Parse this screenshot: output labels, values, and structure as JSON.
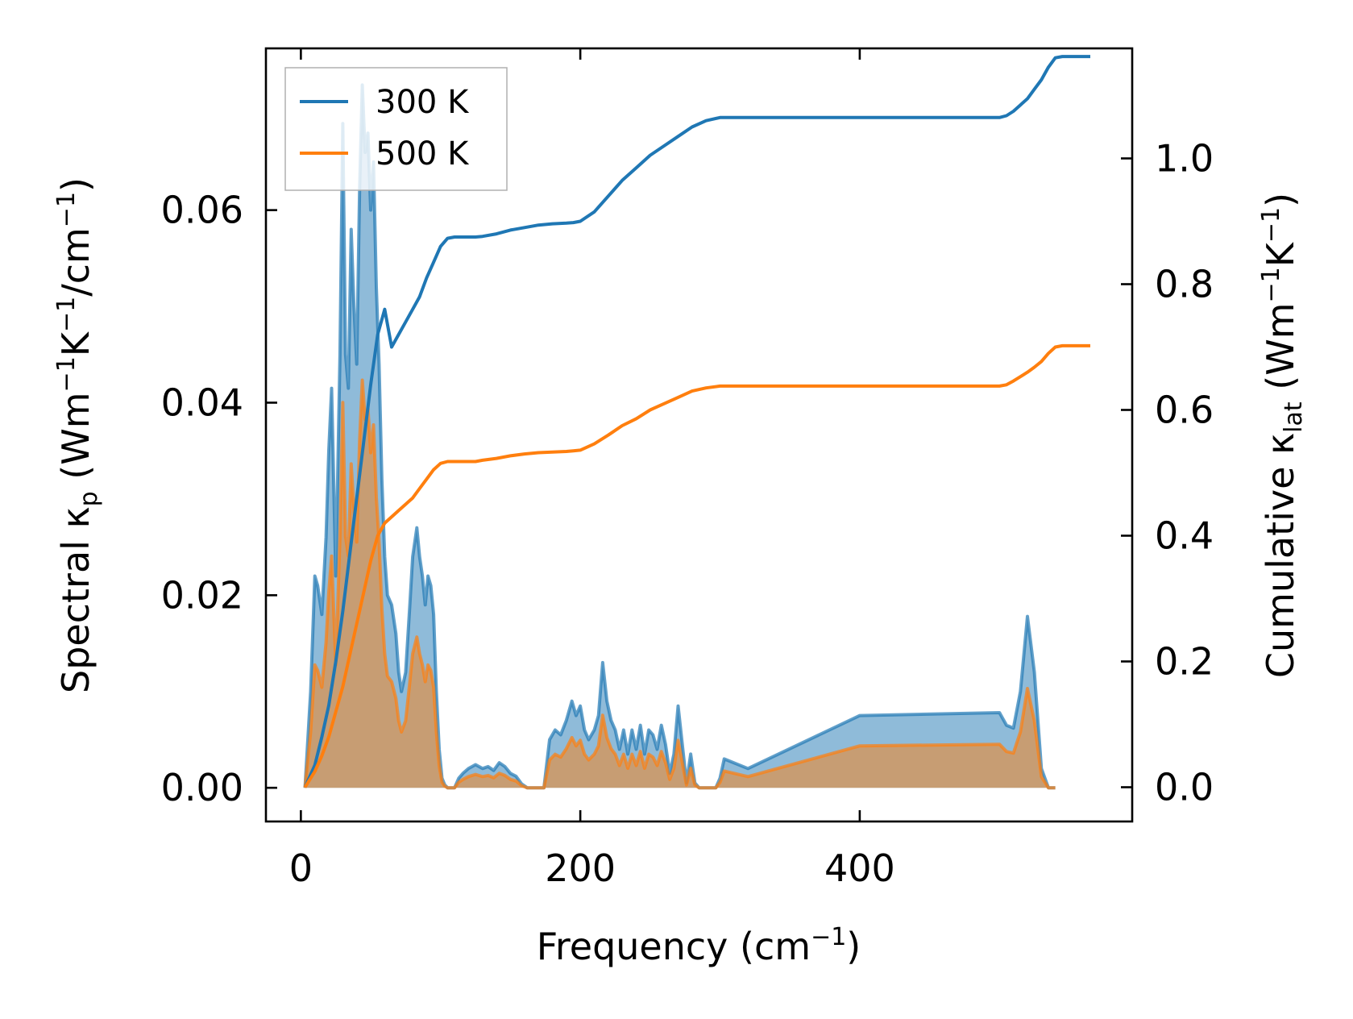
{
  "colors": {
    "series_300": "#1f77b4",
    "series_500": "#ff7f0e"
  },
  "chart_data": {
    "type": "line",
    "title": "",
    "xlabel": {
      "main": "Frequency (cm",
      "sup": "−1",
      "tail": ")"
    },
    "ylabel_left": {
      "a": "Spectral κ",
      "sub": "p",
      "b": " (Wm",
      "sup1": "−1",
      "c": "K",
      "sup2": "−1",
      "d": "/cm",
      "sup3": "−1",
      "e": ")"
    },
    "ylabel_right": {
      "a": "Cumulative κ",
      "sub": "lat",
      "b": " (Wm",
      "sup1": "−1",
      "c": "K",
      "sup2": "−1",
      "d": ")"
    },
    "xlim": [
      -25,
      595
    ],
    "ylim_left": [
      -0.0035,
      0.0768
    ],
    "ylim_right": [
      -0.0545,
      1.175
    ],
    "x_ticks": [
      0,
      200,
      400
    ],
    "x_tick_labels": [
      "0",
      "200",
      "400"
    ],
    "y_left_ticks": [
      0,
      0.02,
      0.04,
      0.06
    ],
    "y_left_tick_labels": [
      "0.00",
      "0.02",
      "0.04",
      "0.06"
    ],
    "y_right_ticks": [
      0,
      0.2,
      0.4,
      0.6,
      0.8,
      1.0
    ],
    "y_right_tick_labels": [
      "0.0",
      "0.2",
      "0.4",
      "0.6",
      "0.8",
      "1.0"
    ],
    "legend": {
      "placement": "upper-left",
      "entries": [
        "300 K",
        "500 K"
      ]
    },
    "grid": false,
    "spectral": {
      "x": [
        3,
        7,
        10,
        12,
        15,
        18,
        20,
        22,
        25,
        28,
        30,
        32,
        34,
        36,
        38,
        40,
        42,
        44,
        46,
        48,
        50,
        52,
        54,
        56,
        58,
        60,
        62,
        65,
        68,
        70,
        72,
        75,
        78,
        80,
        83,
        85,
        87,
        89,
        91,
        93,
        95,
        97,
        99,
        101,
        103,
        105,
        107,
        110,
        113,
        116,
        120,
        125,
        130,
        134,
        138,
        142,
        146,
        150,
        154,
        158,
        162,
        166,
        170,
        174,
        178,
        182,
        186,
        190,
        194,
        197,
        200,
        203,
        206,
        210,
        213,
        216,
        219,
        222,
        225,
        228,
        231,
        234,
        237,
        240,
        243,
        246,
        249,
        252,
        255,
        258,
        261,
        264,
        267,
        270,
        273,
        276,
        279,
        282,
        285,
        288,
        291,
        294,
        297,
        300,
        303,
        320,
        400,
        500,
        505,
        510,
        515,
        520,
        525,
        530,
        535,
        540,
        545,
        550,
        555,
        565
      ],
      "s300": [
        0,
        0.01,
        0.022,
        0.021,
        0.018,
        0.026,
        0.035,
        0.0415,
        0.022,
        0.045,
        0.069,
        0.045,
        0.0415,
        0.058,
        0.05,
        0.044,
        0.062,
        0.073,
        0.066,
        0.068,
        0.06,
        0.065,
        0.052,
        0.044,
        0.032,
        0.024,
        0.02,
        0.019,
        0.016,
        0.012,
        0.01,
        0.012,
        0.019,
        0.024,
        0.027,
        0.024,
        0.022,
        0.019,
        0.022,
        0.021,
        0.018,
        0.01,
        0.004,
        0.001,
        0.0003,
        0,
        0,
        0,
        0.001,
        0.0015,
        0.002,
        0.0024,
        0.002,
        0.0022,
        0.0018,
        0.0026,
        0.0022,
        0.0015,
        0.0012,
        0.0004,
        0,
        0,
        0,
        0,
        0.005,
        0.006,
        0.0055,
        0.007,
        0.009,
        0.0075,
        0.0085,
        0.006,
        0.005,
        0.006,
        0.0075,
        0.013,
        0.009,
        0.007,
        0.006,
        0.004,
        0.006,
        0.0035,
        0.006,
        0.004,
        0.0065,
        0.0035,
        0.006,
        0.0055,
        0.004,
        0.0065,
        0.0045,
        0.0015,
        0.0035,
        0.0085,
        0.0045,
        0.0005,
        0.0035,
        0.0005,
        0,
        0,
        0,
        0,
        0,
        0.001,
        0.003,
        0.002,
        0.0075,
        0.0078,
        0.0065,
        0.0062,
        0.01,
        0.0178,
        0.012,
        0.002,
        0,
        0
      ]
    },
    "cumulative": {
      "x": [
        3,
        10,
        15,
        20,
        25,
        30,
        35,
        40,
        45,
        50,
        55,
        60,
        65,
        70,
        75,
        80,
        85,
        90,
        95,
        100,
        105,
        110,
        115,
        120,
        125,
        130,
        140,
        150,
        160,
        170,
        180,
        190,
        195,
        200,
        210,
        220,
        230,
        240,
        250,
        260,
        270,
        280,
        290,
        300,
        310,
        320,
        400,
        500,
        505,
        510,
        515,
        520,
        525,
        530,
        535,
        540,
        545,
        550,
        555,
        565
      ],
      "c300": [
        0,
        0.035,
        0.08,
        0.13,
        0.2,
        0.28,
        0.37,
        0.46,
        0.55,
        0.64,
        0.72,
        0.76,
        0.7,
        0.72,
        0.74,
        0.76,
        0.78,
        0.81,
        0.835,
        0.86,
        0.873,
        0.875,
        0.875,
        0.875,
        0.875,
        0.876,
        0.88,
        0.886,
        0.89,
        0.894,
        0.896,
        0.897,
        0.898,
        0.9,
        0.915,
        0.94,
        0.965,
        0.985,
        1.005,
        1.02,
        1.035,
        1.05,
        1.06,
        1.065,
        1.065,
        1.065,
        1.065,
        1.065,
        1.068,
        1.075,
        1.085,
        1.095,
        1.11,
        1.125,
        1.145,
        1.16,
        1.162,
        1.162,
        1.162,
        1.162
      ],
      "c500": [
        0,
        0.025,
        0.05,
        0.08,
        0.12,
        0.16,
        0.21,
        0.26,
        0.31,
        0.36,
        0.4,
        0.42,
        0.43,
        0.44,
        0.45,
        0.46,
        0.475,
        0.49,
        0.505,
        0.515,
        0.518,
        0.518,
        0.518,
        0.518,
        0.518,
        0.52,
        0.523,
        0.527,
        0.53,
        0.532,
        0.533,
        0.534,
        0.535,
        0.536,
        0.546,
        0.56,
        0.575,
        0.586,
        0.6,
        0.61,
        0.62,
        0.63,
        0.635,
        0.638,
        0.638,
        0.638,
        0.638,
        0.638,
        0.64,
        0.646,
        0.653,
        0.66,
        0.668,
        0.677,
        0.69,
        0.7,
        0.702,
        0.702,
        0.702,
        0.702
      ]
    },
    "s500_scale": 0.58
  }
}
